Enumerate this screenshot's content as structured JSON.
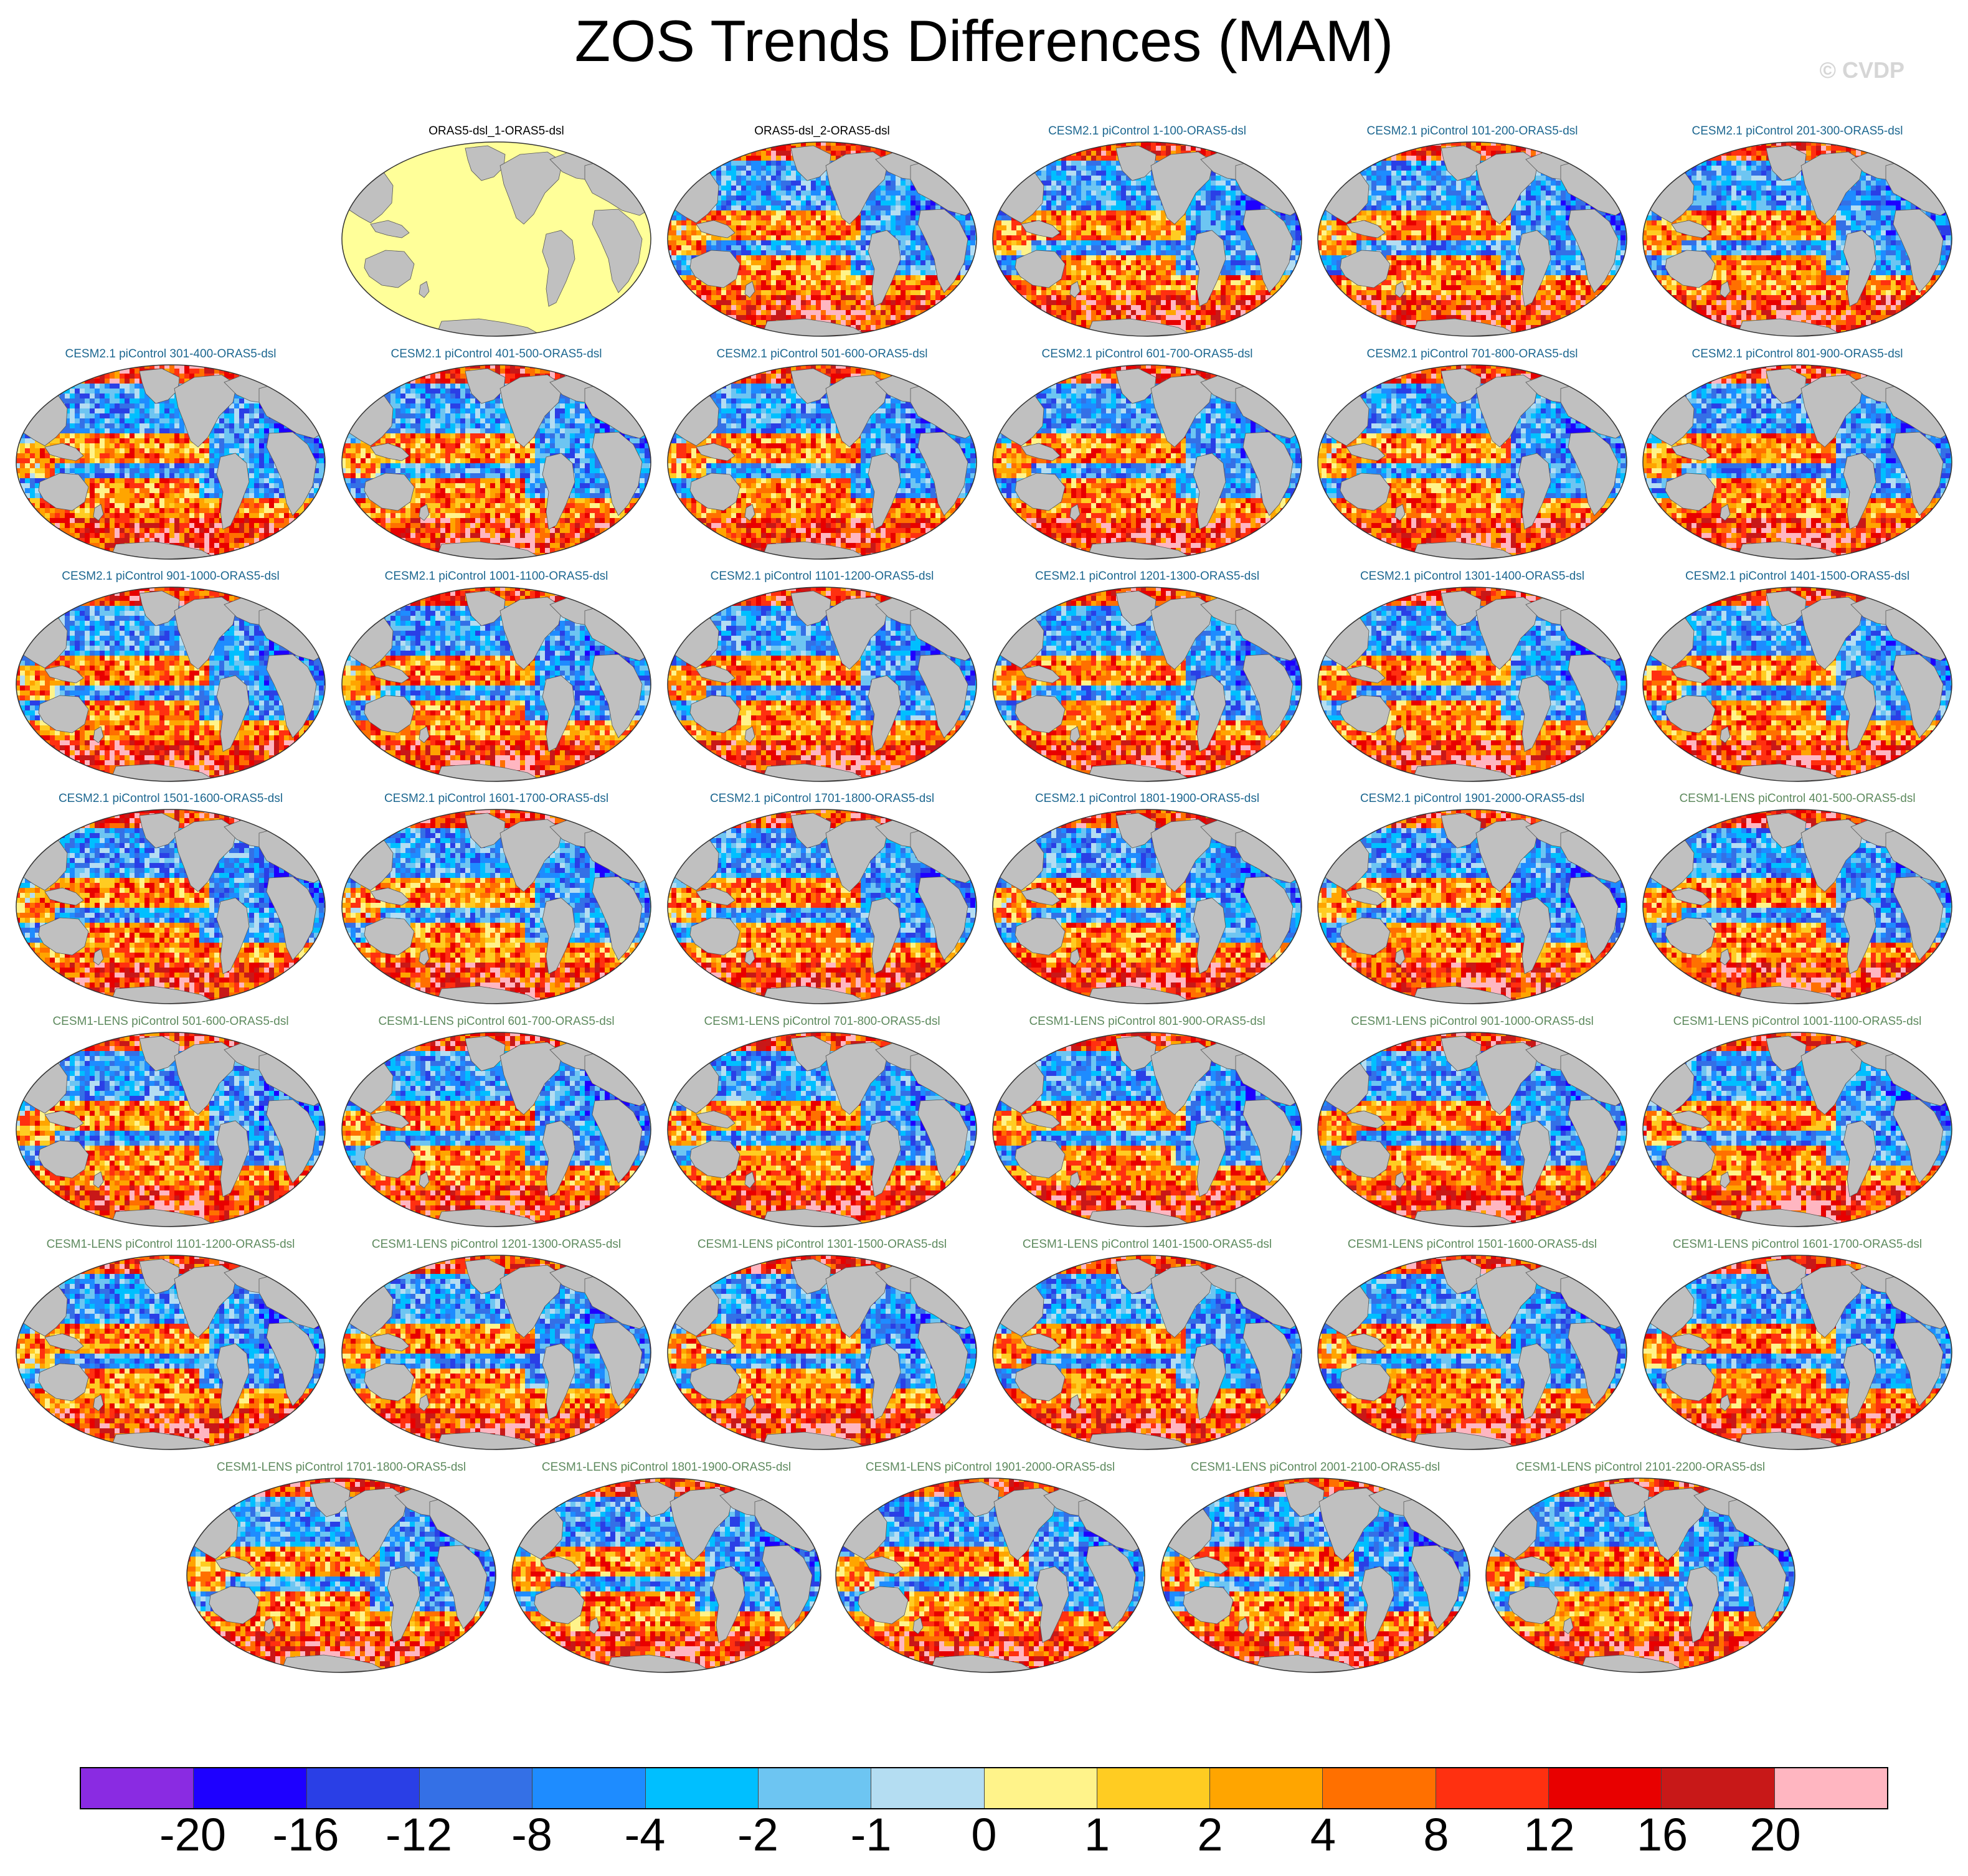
{
  "title": "ZOS Trends Differences (MAM)",
  "watermark": "© CVDP",
  "panels": [
    {
      "title": "ORAS5-dsl_1-ORAS5-dsl",
      "group": "obs",
      "uniform": true
    },
    {
      "title": "ORAS5-dsl_2-ORAS5-dsl",
      "group": "obs"
    },
    {
      "title": "CESM2.1 piControl 1-100-ORAS5-dsl",
      "group": "cesm2"
    },
    {
      "title": "CESM2.1 piControl 101-200-ORAS5-dsl",
      "group": "cesm2"
    },
    {
      "title": "CESM2.1 piControl 201-300-ORAS5-dsl",
      "group": "cesm2"
    },
    {
      "title": "CESM2.1 piControl 301-400-ORAS5-dsl",
      "group": "cesm2"
    },
    {
      "title": "CESM2.1 piControl 401-500-ORAS5-dsl",
      "group": "cesm2"
    },
    {
      "title": "CESM2.1 piControl 501-600-ORAS5-dsl",
      "group": "cesm2"
    },
    {
      "title": "CESM2.1 piControl 601-700-ORAS5-dsl",
      "group": "cesm2"
    },
    {
      "title": "CESM2.1 piControl 701-800-ORAS5-dsl",
      "group": "cesm2"
    },
    {
      "title": "CESM2.1 piControl 801-900-ORAS5-dsl",
      "group": "cesm2"
    },
    {
      "title": "CESM2.1 piControl 901-1000-ORAS5-dsl",
      "group": "cesm2"
    },
    {
      "title": "CESM2.1 piControl 1001-1100-ORAS5-dsl",
      "group": "cesm2"
    },
    {
      "title": "CESM2.1 piControl 1101-1200-ORAS5-dsl",
      "group": "cesm2"
    },
    {
      "title": "CESM2.1 piControl 1201-1300-ORAS5-dsl",
      "group": "cesm2"
    },
    {
      "title": "CESM2.1 piControl 1301-1400-ORAS5-dsl",
      "group": "cesm2"
    },
    {
      "title": "CESM2.1 piControl 1401-1500-ORAS5-dsl",
      "group": "cesm2"
    },
    {
      "title": "CESM2.1 piControl 1501-1600-ORAS5-dsl",
      "group": "cesm2"
    },
    {
      "title": "CESM2.1 piControl 1601-1700-ORAS5-dsl",
      "group": "cesm2"
    },
    {
      "title": "CESM2.1 piControl 1701-1800-ORAS5-dsl",
      "group": "cesm2"
    },
    {
      "title": "CESM2.1 piControl 1801-1900-ORAS5-dsl",
      "group": "cesm2"
    },
    {
      "title": "CESM2.1 piControl 1901-2000-ORAS5-dsl",
      "group": "cesm2"
    },
    {
      "title": "CESM1-LENS piControl 401-500-ORAS5-dsl",
      "group": "cesm1"
    },
    {
      "title": "CESM1-LENS piControl 501-600-ORAS5-dsl",
      "group": "cesm1"
    },
    {
      "title": "CESM1-LENS piControl 601-700-ORAS5-dsl",
      "group": "cesm1"
    },
    {
      "title": "CESM1-LENS piControl 701-800-ORAS5-dsl",
      "group": "cesm1"
    },
    {
      "title": "CESM1-LENS piControl 801-900-ORAS5-dsl",
      "group": "cesm1"
    },
    {
      "title": "CESM1-LENS piControl 901-1000-ORAS5-dsl",
      "group": "cesm1"
    },
    {
      "title": "CESM1-LENS piControl 1001-1100-ORAS5-dsl",
      "group": "cesm1"
    },
    {
      "title": "CESM1-LENS piControl 1101-1200-ORAS5-dsl",
      "group": "cesm1"
    },
    {
      "title": "CESM1-LENS piControl 1201-1300-ORAS5-dsl",
      "group": "cesm1"
    },
    {
      "title": "CESM1-LENS piControl 1301-1500-ORAS5-dsl",
      "group": "cesm1"
    },
    {
      "title": "CESM1-LENS piControl 1401-1500-ORAS5-dsl",
      "group": "cesm1"
    },
    {
      "title": "CESM1-LENS piControl 1501-1600-ORAS5-dsl",
      "group": "cesm1"
    },
    {
      "title": "CESM1-LENS piControl 1601-1700-ORAS5-dsl",
      "group": "cesm1"
    },
    {
      "title": "CESM1-LENS piControl 1701-1800-ORAS5-dsl",
      "group": "cesm1"
    },
    {
      "title": "CESM1-LENS piControl 1801-1900-ORAS5-dsl",
      "group": "cesm1"
    },
    {
      "title": "CESM1-LENS piControl 1901-2000-ORAS5-dsl",
      "group": "cesm1"
    },
    {
      "title": "CESM1-LENS piControl 2001-2100-ORAS5-dsl",
      "group": "cesm1"
    },
    {
      "title": "CESM1-LENS piControl 2101-2200-ORAS5-dsl",
      "group": "cesm1"
    }
  ],
  "colorbar": {
    "colors": [
      "#8a2be2",
      "#1e00ff",
      "#2a3fe6",
      "#3470e6",
      "#1e8cff",
      "#00bfff",
      "#6dc5f2",
      "#b4ddf2",
      "#fff38a",
      "#ffcc22",
      "#ffa500",
      "#ff7000",
      "#ff3010",
      "#e80000",
      "#c81818",
      "#ffb6c1"
    ],
    "labels": [
      "-20",
      "-16",
      "-12",
      "-8",
      "-4",
      "-2",
      "-1",
      "0",
      "1",
      "2",
      "4",
      "8",
      "12",
      "16",
      "20"
    ]
  },
  "palette": {
    "land": "#c0c0c0",
    "uniform_fill": "#ffff99",
    "title_obs": "#000000",
    "title_cesm2": "#1d6790",
    "title_cesm1": "#5e8a5e"
  }
}
